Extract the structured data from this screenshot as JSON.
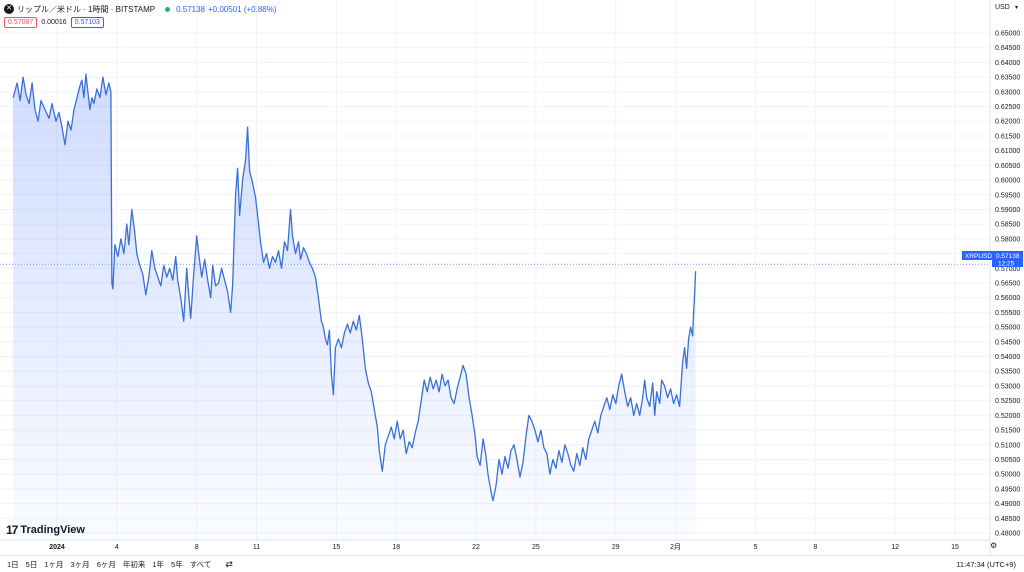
{
  "header": {
    "logo_glyph": "✕",
    "symbol_title": "リップル／米ドル · 1時間 · BITSTAMP",
    "last_price": "0.57138",
    "change": "+0.00501 (+0.88%)"
  },
  "price_boxes": {
    "sell": "0.57087",
    "spread": "0.00016",
    "buy": "0.57103"
  },
  "axis": {
    "currency": "USD",
    "currency_caret": "▾"
  },
  "last_price_label": {
    "symbol": "XRPUSD",
    "price": "0.57138",
    "countdown": "12:25"
  },
  "branding": {
    "name": "TradingView",
    "mark": "17"
  },
  "bottom_bar": {
    "ranges": [
      "1日",
      "5日",
      "1ヶ月",
      "3ヶ月",
      "6ヶ月",
      "年初来",
      "1年",
      "5年",
      "すべて"
    ],
    "goto_icon": "⇄",
    "clock": "11:47:34 (UTC+9)",
    "settings_icon": "⚙"
  },
  "colors": {
    "line": "#3a6fd8",
    "accent": "#2962ff",
    "sell": "#f7525f",
    "live": "#26a69a"
  },
  "chart_data": {
    "type": "area",
    "title": "",
    "xlabel": "",
    "ylabel": "",
    "ylim": [
      0.475,
      0.6525
    ],
    "grid": true,
    "y_ticks": [
      "0.65000",
      "0.64500",
      "0.64000",
      "0.63500",
      "0.63000",
      "0.62500",
      "0.62000",
      "0.61500",
      "0.61000",
      "0.60500",
      "0.60000",
      "0.59500",
      "0.59000",
      "0.58500",
      "0.58000",
      "0.57500",
      "0.57000",
      "0.56500",
      "0.56000",
      "0.55500",
      "0.55000",
      "0.54500",
      "0.54000",
      "0.53500",
      "0.53000",
      "0.52500",
      "0.52000",
      "0.51500",
      "0.51000",
      "0.50500",
      "0.50000",
      "0.49500",
      "0.49000",
      "0.48500",
      "0.48000"
    ],
    "x_ticks": [
      {
        "label": "2024",
        "day": 0,
        "bold": true
      },
      {
        "label": "4",
        "day": 3
      },
      {
        "label": "8",
        "day": 7
      },
      {
        "label": "11",
        "day": 10
      },
      {
        "label": "15",
        "day": 14
      },
      {
        "label": "18",
        "day": 17
      },
      {
        "label": "22",
        "day": 21
      },
      {
        "label": "25",
        "day": 24
      },
      {
        "label": "29",
        "day": 28
      },
      {
        "label": "2月",
        "day": 31
      },
      {
        "label": "5",
        "day": 35
      },
      {
        "label": "8",
        "day": 38
      },
      {
        "label": "12",
        "day": 42
      },
      {
        "label": "15",
        "day": 45
      }
    ],
    "series": [
      {
        "values": [
          [
            -2.2,
            0.628
          ],
          [
            -2.0,
            0.633
          ],
          [
            -1.85,
            0.627
          ],
          [
            -1.7,
            0.635
          ],
          [
            -1.55,
            0.629
          ],
          [
            -1.4,
            0.626
          ],
          [
            -1.25,
            0.633
          ],
          [
            -1.1,
            0.624
          ],
          [
            -0.95,
            0.62
          ],
          [
            -0.8,
            0.627
          ],
          [
            -0.6,
            0.624
          ],
          [
            -0.4,
            0.621
          ],
          [
            -0.25,
            0.626
          ],
          [
            -0.05,
            0.62
          ],
          [
            0.1,
            0.623
          ],
          [
            0.25,
            0.618
          ],
          [
            0.4,
            0.612
          ],
          [
            0.55,
            0.62
          ],
          [
            0.7,
            0.617
          ],
          [
            0.85,
            0.624
          ],
          [
            1.0,
            0.628
          ],
          [
            1.15,
            0.632
          ],
          [
            1.25,
            0.634
          ],
          [
            1.35,
            0.628
          ],
          [
            1.45,
            0.636
          ],
          [
            1.55,
            0.63
          ],
          [
            1.65,
            0.624
          ],
          [
            1.75,
            0.628
          ],
          [
            1.85,
            0.626
          ],
          [
            2.0,
            0.631
          ],
          [
            2.15,
            0.628
          ],
          [
            2.3,
            0.635
          ],
          [
            2.45,
            0.629
          ],
          [
            2.6,
            0.633
          ],
          [
            2.7,
            0.63
          ],
          [
            2.75,
            0.565
          ],
          [
            2.8,
            0.563
          ],
          [
            2.9,
            0.578
          ],
          [
            3.05,
            0.574
          ],
          [
            3.2,
            0.58
          ],
          [
            3.35,
            0.575
          ],
          [
            3.5,
            0.585
          ],
          [
            3.6,
            0.578
          ],
          [
            3.75,
            0.59
          ],
          [
            3.9,
            0.582
          ],
          [
            4.0,
            0.575
          ],
          [
            4.15,
            0.571
          ],
          [
            4.3,
            0.568
          ],
          [
            4.45,
            0.561
          ],
          [
            4.6,
            0.567
          ],
          [
            4.75,
            0.576
          ],
          [
            4.9,
            0.57
          ],
          [
            5.05,
            0.567
          ],
          [
            5.2,
            0.564
          ],
          [
            5.35,
            0.571
          ],
          [
            5.5,
            0.567
          ],
          [
            5.65,
            0.57
          ],
          [
            5.8,
            0.566
          ],
          [
            5.95,
            0.574
          ],
          [
            6.05,
            0.566
          ],
          [
            6.2,
            0.56
          ],
          [
            6.35,
            0.552
          ],
          [
            6.5,
            0.57
          ],
          [
            6.6,
            0.561
          ],
          [
            6.7,
            0.553
          ],
          [
            6.85,
            0.568
          ],
          [
            7.0,
            0.581
          ],
          [
            7.1,
            0.575
          ],
          [
            7.25,
            0.567
          ],
          [
            7.4,
            0.573
          ],
          [
            7.55,
            0.566
          ],
          [
            7.7,
            0.56
          ],
          [
            7.8,
            0.571
          ],
          [
            7.95,
            0.564
          ],
          [
            8.1,
            0.565
          ],
          [
            8.25,
            0.57
          ],
          [
            8.4,
            0.566
          ],
          [
            8.55,
            0.562
          ],
          [
            8.7,
            0.555
          ],
          [
            8.8,
            0.564
          ],
          [
            8.95,
            0.595
          ],
          [
            9.05,
            0.604
          ],
          [
            9.15,
            0.588
          ],
          [
            9.3,
            0.6
          ],
          [
            9.45,
            0.607
          ],
          [
            9.55,
            0.618
          ],
          [
            9.65,
            0.603
          ],
          [
            9.8,
            0.599
          ],
          [
            9.95,
            0.594
          ],
          [
            10.1,
            0.585
          ],
          [
            10.2,
            0.579
          ],
          [
            10.35,
            0.572
          ],
          [
            10.5,
            0.575
          ],
          [
            10.65,
            0.57
          ],
          [
            10.8,
            0.574
          ],
          [
            10.95,
            0.572
          ],
          [
            11.1,
            0.576
          ],
          [
            11.25,
            0.57
          ],
          [
            11.4,
            0.579
          ],
          [
            11.55,
            0.576
          ],
          [
            11.7,
            0.59
          ],
          [
            11.8,
            0.581
          ],
          [
            11.95,
            0.575
          ],
          [
            12.1,
            0.579
          ],
          [
            12.2,
            0.573
          ],
          [
            12.35,
            0.577
          ],
          [
            12.5,
            0.575
          ],
          [
            12.65,
            0.572
          ],
          [
            12.8,
            0.57
          ],
          [
            12.95,
            0.567
          ],
          [
            13.1,
            0.56
          ],
          [
            13.25,
            0.552
          ],
          [
            13.35,
            0.55
          ],
          [
            13.45,
            0.546
          ],
          [
            13.55,
            0.544
          ],
          [
            13.65,
            0.549
          ],
          [
            13.75,
            0.534
          ],
          [
            13.85,
            0.527
          ],
          [
            13.95,
            0.543
          ],
          [
            14.1,
            0.546
          ],
          [
            14.25,
            0.543
          ],
          [
            14.4,
            0.548
          ],
          [
            14.55,
            0.551
          ],
          [
            14.7,
            0.548
          ],
          [
            14.85,
            0.552
          ],
          [
            15.0,
            0.549
          ],
          [
            15.15,
            0.554
          ],
          [
            15.3,
            0.546
          ],
          [
            15.45,
            0.536
          ],
          [
            15.6,
            0.531
          ],
          [
            15.75,
            0.528
          ],
          [
            15.9,
            0.522
          ],
          [
            16.05,
            0.516
          ],
          [
            16.15,
            0.508
          ],
          [
            16.3,
            0.501
          ],
          [
            16.45,
            0.51
          ],
          [
            16.6,
            0.513
          ],
          [
            16.75,
            0.516
          ],
          [
            16.9,
            0.512
          ],
          [
            17.05,
            0.518
          ],
          [
            17.2,
            0.512
          ],
          [
            17.35,
            0.515
          ],
          [
            17.5,
            0.507
          ],
          [
            17.65,
            0.511
          ],
          [
            17.8,
            0.509
          ],
          [
            17.95,
            0.514
          ],
          [
            18.1,
            0.518
          ],
          [
            18.25,
            0.525
          ],
          [
            18.4,
            0.532
          ],
          [
            18.55,
            0.528
          ],
          [
            18.7,
            0.533
          ],
          [
            18.85,
            0.529
          ],
          [
            19.0,
            0.532
          ],
          [
            19.15,
            0.528
          ],
          [
            19.3,
            0.534
          ],
          [
            19.45,
            0.53
          ],
          [
            19.6,
            0.532
          ],
          [
            19.75,
            0.526
          ],
          [
            19.9,
            0.524
          ],
          [
            20.05,
            0.529
          ],
          [
            20.2,
            0.533
          ],
          [
            20.35,
            0.537
          ],
          [
            20.5,
            0.534
          ],
          [
            20.65,
            0.526
          ],
          [
            20.8,
            0.52
          ],
          [
            20.95,
            0.513
          ],
          [
            21.05,
            0.506
          ],
          [
            21.2,
            0.503
          ],
          [
            21.35,
            0.512
          ],
          [
            21.5,
            0.506
          ],
          [
            21.6,
            0.5
          ],
          [
            21.75,
            0.494
          ],
          [
            21.85,
            0.491
          ],
          [
            22.0,
            0.496
          ],
          [
            22.15,
            0.505
          ],
          [
            22.3,
            0.5
          ],
          [
            22.45,
            0.506
          ],
          [
            22.6,
            0.502
          ],
          [
            22.75,
            0.508
          ],
          [
            22.9,
            0.51
          ],
          [
            23.05,
            0.505
          ],
          [
            23.2,
            0.499
          ],
          [
            23.35,
            0.504
          ],
          [
            23.5,
            0.513
          ],
          [
            23.65,
            0.52
          ],
          [
            23.8,
            0.518
          ],
          [
            23.95,
            0.515
          ],
          [
            24.1,
            0.511
          ],
          [
            24.25,
            0.515
          ],
          [
            24.4,
            0.509
          ],
          [
            24.55,
            0.507
          ],
          [
            24.7,
            0.5
          ],
          [
            24.85,
            0.505
          ],
          [
            25.0,
            0.502
          ],
          [
            25.15,
            0.508
          ],
          [
            25.3,
            0.504
          ],
          [
            25.45,
            0.51
          ],
          [
            25.6,
            0.507
          ],
          [
            25.75,
            0.503
          ],
          [
            25.9,
            0.501
          ],
          [
            26.05,
            0.507
          ],
          [
            26.2,
            0.503
          ],
          [
            26.35,
            0.509
          ],
          [
            26.5,
            0.505
          ],
          [
            26.65,
            0.512
          ],
          [
            26.8,
            0.515
          ],
          [
            26.95,
            0.518
          ],
          [
            27.1,
            0.514
          ],
          [
            27.25,
            0.52
          ],
          [
            27.4,
            0.523
          ],
          [
            27.55,
            0.526
          ],
          [
            27.7,
            0.522
          ],
          [
            27.85,
            0.527
          ],
          [
            28.0,
            0.524
          ],
          [
            28.15,
            0.53
          ],
          [
            28.3,
            0.534
          ],
          [
            28.45,
            0.528
          ],
          [
            28.6,
            0.523
          ],
          [
            28.75,
            0.526
          ],
          [
            28.9,
            0.52
          ],
          [
            29.05,
            0.524
          ],
          [
            29.2,
            0.52
          ],
          [
            29.35,
            0.526
          ],
          [
            29.45,
            0.532
          ],
          [
            29.55,
            0.526
          ],
          [
            29.7,
            0.523
          ],
          [
            29.85,
            0.531
          ],
          [
            29.95,
            0.52
          ],
          [
            30.05,
            0.528
          ],
          [
            30.2,
            0.524
          ],
          [
            30.3,
            0.532
          ],
          [
            30.45,
            0.53
          ],
          [
            30.6,
            0.526
          ],
          [
            30.75,
            0.529
          ],
          [
            30.9,
            0.524
          ],
          [
            31.05,
            0.527
          ],
          [
            31.2,
            0.523
          ],
          [
            31.35,
            0.538
          ],
          [
            31.45,
            0.543
          ],
          [
            31.55,
            0.536
          ],
          [
            31.65,
            0.546
          ],
          [
            31.75,
            0.55
          ],
          [
            31.85,
            0.547
          ],
          [
            31.9,
            0.555
          ],
          [
            31.95,
            0.561
          ],
          [
            32.0,
            0.569
          ]
        ]
      }
    ]
  }
}
